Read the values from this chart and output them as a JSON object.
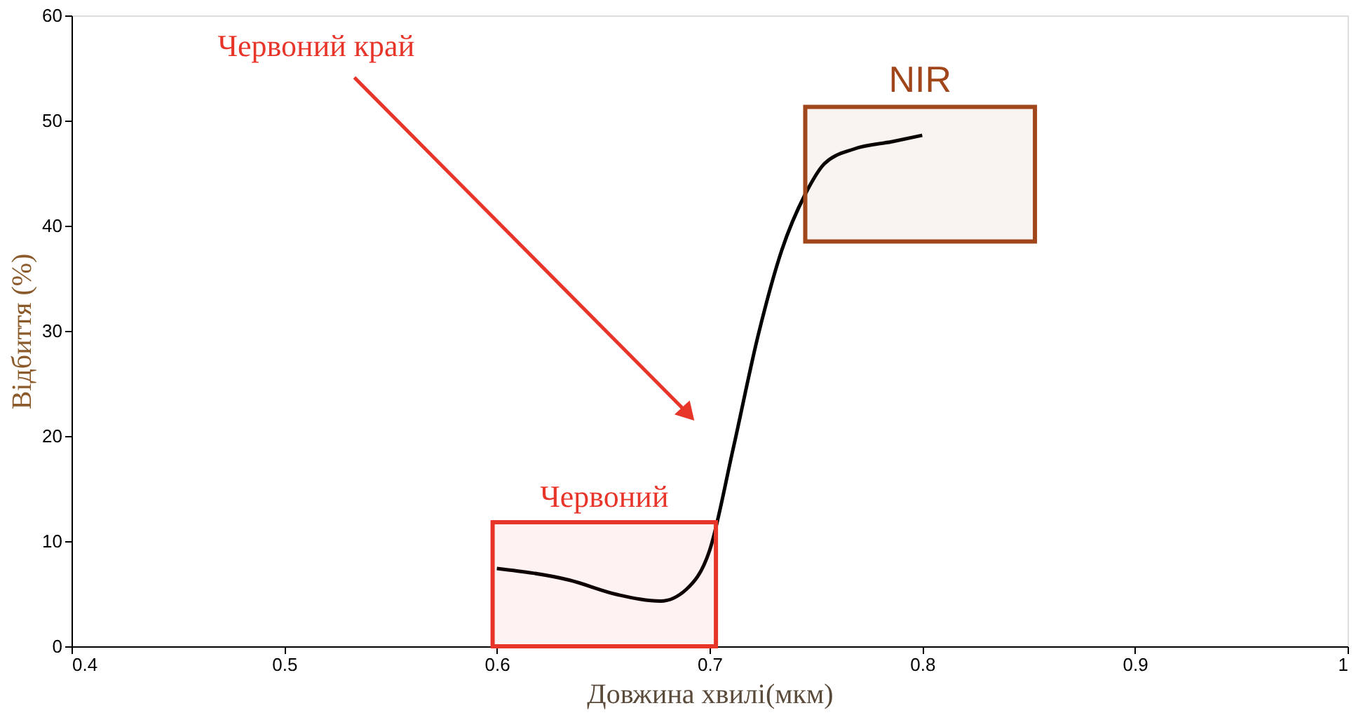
{
  "chart_data": {
    "type": "line",
    "xlabel": "Довжина хвилі(мкм)",
    "ylabel": "Відбиття (%)",
    "x": [
      0.6,
      0.634,
      0.657,
      0.677,
      0.689,
      0.7,
      0.711,
      0.723,
      0.734,
      0.745,
      0.754,
      0.768,
      0.786,
      0.8
    ],
    "series": [
      {
        "color": "#000000",
        "values": [
          7.4,
          6.3,
          4.9,
          4.3,
          5.4,
          9.1,
          18.7,
          29.7,
          37.7,
          43.0,
          45.9,
          47.3,
          48.0,
          48.6
        ]
      }
    ],
    "xlim": [
      0.4,
      1.0
    ],
    "xticks": [
      0.4,
      0.5,
      0.6,
      0.7,
      0.8,
      0.9,
      {
        "value": 1.0,
        "label": "1"
      }
    ],
    "ylim": [
      0,
      60
    ],
    "yticks": [
      0,
      10,
      20,
      30,
      40,
      50,
      60
    ],
    "grid": false,
    "legend": false,
    "marker": "none",
    "line_style": "solid",
    "bands": [
      {
        "axis": "x",
        "from": 0.598,
        "to": 0.703,
        "label": "Червоний",
        "color": "#e8352a"
      },
      {
        "axis": "x",
        "from": 0.745,
        "to": 0.853,
        "label": "NIR",
        "color": "#a0461a"
      }
    ],
    "annotations": [
      {
        "text": "Червоний край",
        "x": 0.689,
        "y": 22.3
      }
    ]
  }
}
